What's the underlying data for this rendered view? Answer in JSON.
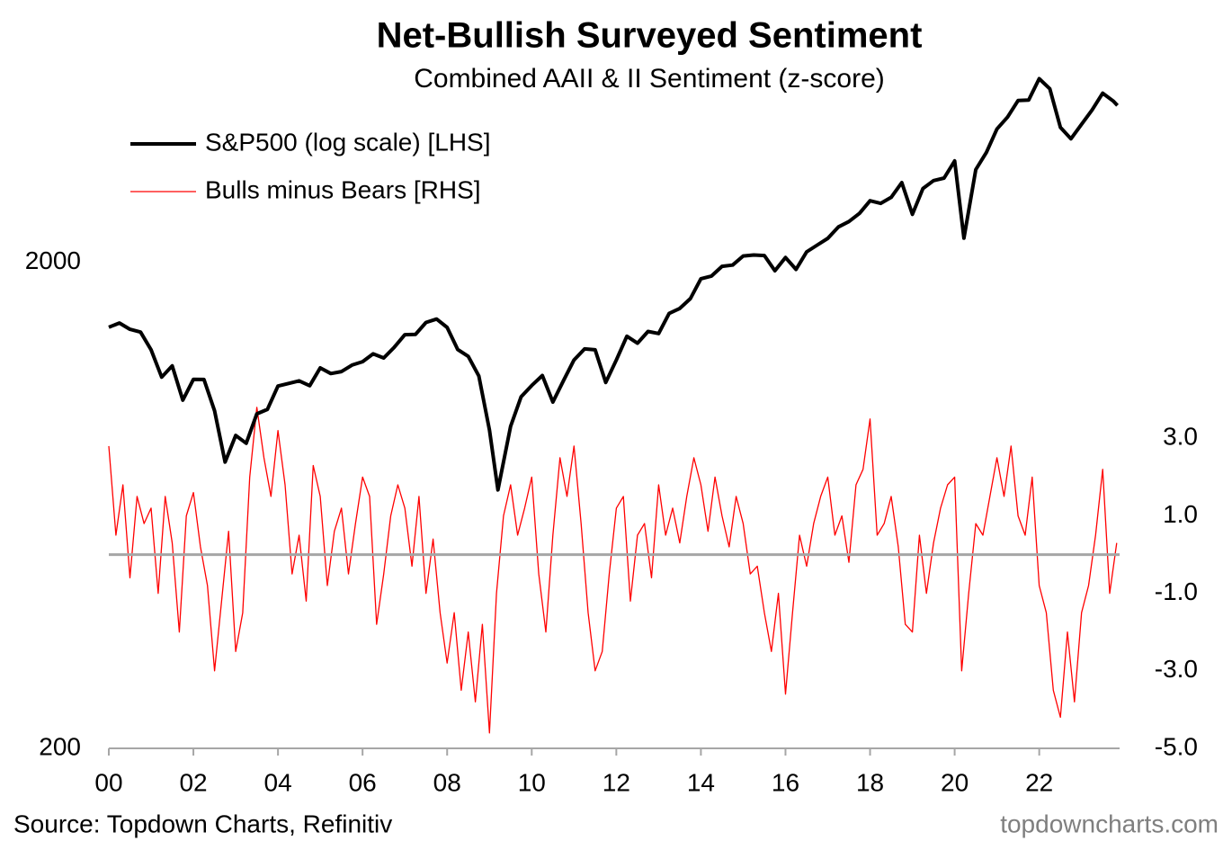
{
  "chart_data": {
    "type": "line",
    "title": "Net-Bullish Surveyed Sentiment",
    "subtitle": "Combined AAII & II Sentiment (z-score)",
    "source": "Source: Topdown Charts, Refinitiv",
    "watermark": "topdowncharts.com",
    "xlim": [
      2000,
      2023.9
    ],
    "xticks": [
      {
        "value": 2000,
        "label": "00"
      },
      {
        "value": 2002,
        "label": "02"
      },
      {
        "value": 2004,
        "label": "04"
      },
      {
        "value": 2006,
        "label": "06"
      },
      {
        "value": 2008,
        "label": "08"
      },
      {
        "value": 2010,
        "label": "10"
      },
      {
        "value": 2012,
        "label": "12"
      },
      {
        "value": 2014,
        "label": "14"
      },
      {
        "value": 2016,
        "label": "16"
      },
      {
        "value": 2018,
        "label": "18"
      },
      {
        "value": 2020,
        "label": "20"
      },
      {
        "value": 2022,
        "label": "22"
      }
    ],
    "ylim": [
      200,
      6300
    ],
    "ylog": true,
    "yticks": [
      200,
      2000
    ],
    "y2lim": [
      -5,
      13.8
    ],
    "y2ticks": [
      {
        "value": -5,
        "label": "-5.0"
      },
      {
        "value": -3,
        "label": "-3.0"
      },
      {
        "value": -1,
        "label": "-1.0"
      },
      {
        "value": 1,
        "label": "1.0"
      },
      {
        "value": 3,
        "label": "3.0"
      }
    ],
    "reference_lines": [
      {
        "axis": "y2",
        "value": 0,
        "color": "#a6a6a6"
      }
    ],
    "legend": "top-left",
    "series": [
      {
        "name": "S&P500 (log scale) [LHS]",
        "color": "#000000",
        "width": 4,
        "axis": "y",
        "x": [
          2000,
          2000.25,
          2000.5,
          2000.75,
          2001,
          2001.25,
          2001.5,
          2001.75,
          2002,
          2002.25,
          2002.5,
          2002.75,
          2003,
          2003.25,
          2003.5,
          2003.75,
          2004,
          2004.25,
          2004.5,
          2004.75,
          2005,
          2005.25,
          2005.5,
          2005.75,
          2006,
          2006.25,
          2006.5,
          2006.75,
          2007,
          2007.25,
          2007.5,
          2007.75,
          2008,
          2008.25,
          2008.5,
          2008.75,
          2009,
          2009.2,
          2009.5,
          2009.75,
          2010,
          2010.25,
          2010.5,
          2010.75,
          2011,
          2011.25,
          2011.5,
          2011.75,
          2012,
          2012.25,
          2012.5,
          2012.75,
          2013,
          2013.25,
          2013.5,
          2013.75,
          2014,
          2014.25,
          2014.5,
          2014.75,
          2015,
          2015.25,
          2015.5,
          2015.75,
          2016,
          2016.25,
          2016.5,
          2016.75,
          2017,
          2017.25,
          2017.5,
          2017.75,
          2018,
          2018.25,
          2018.5,
          2018.75,
          2019,
          2019.25,
          2019.5,
          2019.75,
          2020,
          2020.22,
          2020.5,
          2020.75,
          2021,
          2021.25,
          2021.5,
          2021.75,
          2022,
          2022.25,
          2022.5,
          2022.75,
          2023,
          2023.25,
          2023.5,
          2023.75,
          2023.85
        ],
        "values": [
          1469,
          1499,
          1455,
          1436,
          1320,
          1160,
          1224,
          1040,
          1148,
          1147,
          989,
          776,
          880,
          848,
          975,
          996,
          1112,
          1126,
          1140,
          1114,
          1212,
          1180,
          1191,
          1228,
          1248,
          1295,
          1270,
          1336,
          1418,
          1420,
          1503,
          1527,
          1468,
          1322,
          1280,
          1166,
          903,
          680,
          919,
          1057,
          1115,
          1169,
          1031,
          1141,
          1258,
          1326,
          1320,
          1131,
          1258,
          1408,
          1362,
          1440,
          1426,
          1569,
          1606,
          1682,
          1848,
          1872,
          1960,
          1972,
          2059,
          2068,
          2063,
          1920,
          2044,
          1932,
          2099,
          2168,
          2238,
          2362,
          2423,
          2519,
          2674,
          2641,
          2718,
          2914,
          2507,
          2834,
          2942,
          2977,
          3230,
          2240,
          3100,
          3363,
          3756,
          3973,
          4297,
          4308,
          4766,
          4545,
          3785,
          3586,
          3840,
          4109,
          4450,
          4288,
          4200
        ]
      },
      {
        "name": "Bulls minus Bears [RHS]",
        "color": "#ff0000",
        "width": 1.3,
        "axis": "y2",
        "x": [
          2000,
          2000.167,
          2000.333,
          2000.5,
          2000.667,
          2000.833,
          2001,
          2001.167,
          2001.333,
          2001.5,
          2001.667,
          2001.833,
          2002,
          2002.167,
          2002.333,
          2002.5,
          2002.667,
          2002.833,
          2003,
          2003.167,
          2003.333,
          2003.5,
          2003.667,
          2003.833,
          2004,
          2004.167,
          2004.333,
          2004.5,
          2004.667,
          2004.833,
          2005,
          2005.167,
          2005.333,
          2005.5,
          2005.667,
          2005.833,
          2006,
          2006.167,
          2006.333,
          2006.5,
          2006.667,
          2006.833,
          2007,
          2007.167,
          2007.333,
          2007.5,
          2007.667,
          2007.833,
          2008,
          2008.167,
          2008.333,
          2008.5,
          2008.667,
          2008.833,
          2009,
          2009.167,
          2009.333,
          2009.5,
          2009.667,
          2009.833,
          2010,
          2010.167,
          2010.333,
          2010.5,
          2010.667,
          2010.833,
          2011,
          2011.167,
          2011.333,
          2011.5,
          2011.667,
          2011.833,
          2012,
          2012.167,
          2012.333,
          2012.5,
          2012.667,
          2012.833,
          2013,
          2013.167,
          2013.333,
          2013.5,
          2013.667,
          2013.833,
          2014,
          2014.167,
          2014.333,
          2014.5,
          2014.667,
          2014.833,
          2015,
          2015.167,
          2015.333,
          2015.5,
          2015.667,
          2015.833,
          2016,
          2016.167,
          2016.333,
          2016.5,
          2016.667,
          2016.833,
          2017,
          2017.167,
          2017.333,
          2017.5,
          2017.667,
          2017.833,
          2018,
          2018.167,
          2018.333,
          2018.5,
          2018.667,
          2018.833,
          2019,
          2019.167,
          2019.333,
          2019.5,
          2019.667,
          2019.833,
          2020,
          2020.167,
          2020.333,
          2020.5,
          2020.667,
          2020.833,
          2021,
          2021.167,
          2021.333,
          2021.5,
          2021.667,
          2021.833,
          2022,
          2022.167,
          2022.333,
          2022.5,
          2022.667,
          2022.833,
          2023,
          2023.167,
          2023.333,
          2023.5,
          2023.667,
          2023.833
        ],
        "values": [
          2.8,
          0.5,
          1.8,
          -0.6,
          1.5,
          0.8,
          1.2,
          -1.0,
          1.5,
          0.3,
          -2.0,
          1.0,
          1.6,
          0.2,
          -0.8,
          -3.0,
          -1.2,
          0.6,
          -2.5,
          -1.5,
          2.0,
          3.8,
          2.5,
          1.5,
          3.2,
          1.8,
          -0.5,
          0.5,
          -1.2,
          2.3,
          1.5,
          -0.8,
          0.6,
          1.2,
          -0.5,
          0.8,
          2.0,
          1.5,
          -1.8,
          -0.5,
          1.0,
          1.8,
          1.2,
          -0.3,
          1.5,
          -1.0,
          0.4,
          -1.5,
          -2.8,
          -1.5,
          -3.5,
          -2.0,
          -3.8,
          -1.8,
          -4.6,
          -1.0,
          1.0,
          1.8,
          0.5,
          1.2,
          2.0,
          -0.5,
          -2.0,
          0.5,
          2.5,
          1.5,
          2.8,
          0.8,
          -1.5,
          -3.0,
          -2.5,
          -0.5,
          1.2,
          1.5,
          -1.2,
          0.5,
          0.8,
          -0.6,
          1.8,
          0.5,
          1.2,
          0.3,
          1.5,
          2.5,
          1.8,
          0.6,
          2.0,
          1.0,
          0.2,
          1.5,
          0.8,
          -0.5,
          -0.3,
          -1.5,
          -2.5,
          -1.0,
          -3.6,
          -1.5,
          0.5,
          -0.3,
          0.8,
          1.5,
          2.0,
          0.5,
          1.0,
          -0.2,
          1.8,
          2.2,
          3.5,
          0.5,
          0.8,
          1.5,
          0.2,
          -1.8,
          -2.0,
          0.5,
          -1.0,
          0.3,
          1.2,
          1.8,
          2.0,
          -3.0,
          -1.0,
          0.8,
          0.5,
          1.5,
          2.5,
          1.5,
          2.8,
          1.0,
          0.5,
          2.0,
          -0.8,
          -1.5,
          -3.5,
          -4.2,
          -2.0,
          -3.8,
          -1.5,
          -0.8,
          0.5,
          2.2,
          -1.0,
          0.3
        ]
      }
    ]
  }
}
